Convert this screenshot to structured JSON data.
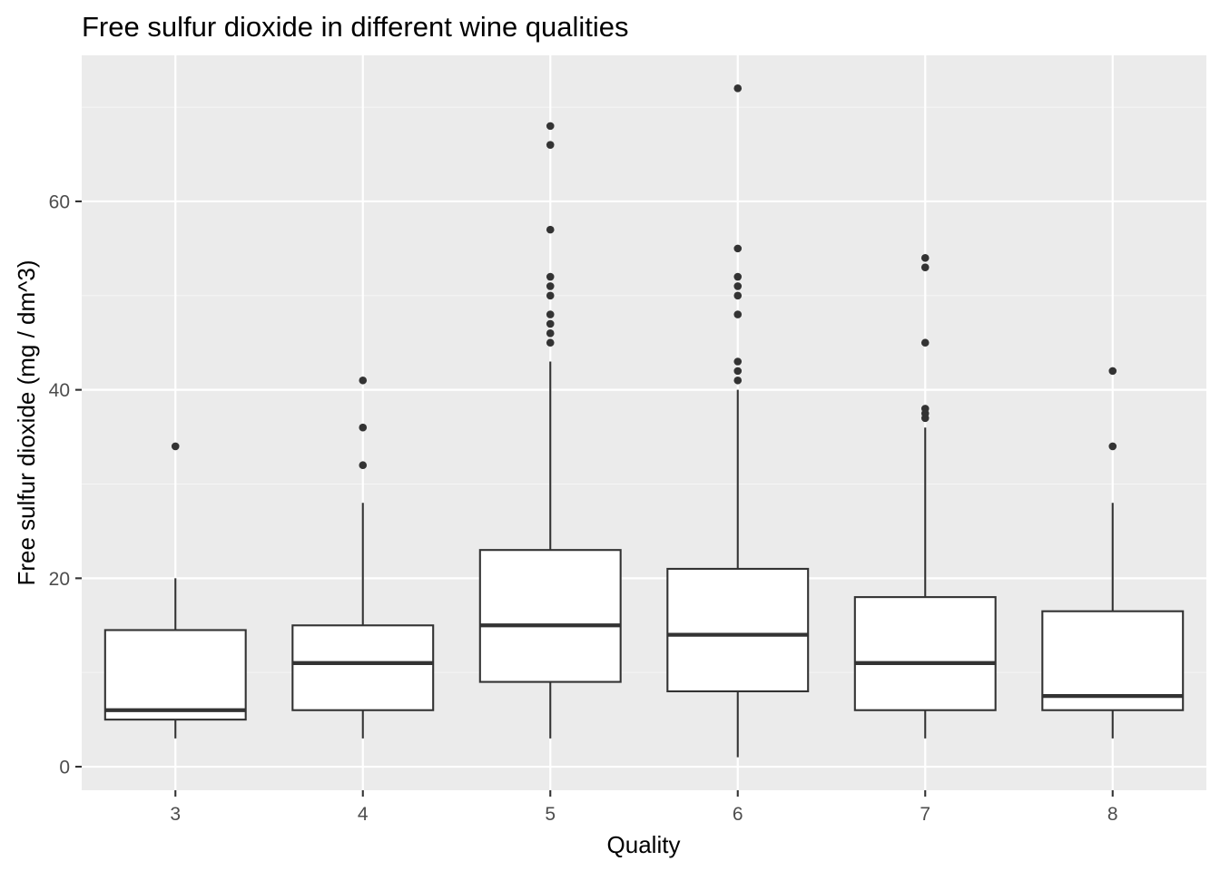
{
  "chart_data": {
    "type": "boxplot",
    "title": "Free sulfur dioxide in different wine qualities",
    "xlabel": "Quality",
    "ylabel": "Free sulfur dioxide (mg / dm^3)",
    "categories": [
      "3",
      "4",
      "5",
      "6",
      "7",
      "8"
    ],
    "ylim": [
      -2.5,
      75.5
    ],
    "y_ticks": [
      0,
      20,
      40,
      60
    ],
    "grid": true,
    "legend": "none",
    "boxes": [
      {
        "category": "3",
        "whisker_low": 3,
        "q1": 5,
        "median": 6,
        "q3": 14.5,
        "whisker_high": 20,
        "outliers": [
          34
        ]
      },
      {
        "category": "4",
        "whisker_low": 3,
        "q1": 6,
        "median": 11,
        "q3": 15,
        "whisker_high": 28,
        "outliers": [
          32,
          36,
          41
        ]
      },
      {
        "category": "5",
        "whisker_low": 3,
        "q1": 9,
        "median": 15,
        "q3": 23,
        "whisker_high": 43,
        "outliers": [
          45,
          46,
          47,
          48,
          50,
          51,
          52,
          57,
          66,
          68
        ]
      },
      {
        "category": "6",
        "whisker_low": 1,
        "q1": 8,
        "median": 14,
        "q3": 21,
        "whisker_high": 40,
        "outliers": [
          41,
          42,
          43,
          48,
          50,
          51,
          52,
          55,
          72
        ]
      },
      {
        "category": "7",
        "whisker_low": 3,
        "q1": 6,
        "median": 11,
        "q3": 18,
        "whisker_high": 36,
        "outliers": [
          37,
          37.5,
          38,
          45,
          53,
          54
        ]
      },
      {
        "category": "8",
        "whisker_low": 3,
        "q1": 6,
        "median": 7.5,
        "q3": 16.5,
        "whisker_high": 28,
        "outliers": [
          34,
          42
        ]
      }
    ],
    "colors": {
      "panel_background": "#EBEBEB",
      "grid_major": "#FFFFFF",
      "grid_minor": "#F5F5F5",
      "box_fill": "#FFFFFF",
      "box_line": "#333333",
      "outlier": "#333333",
      "tick_label": "#4D4D4D",
      "tick_mark": "#333333"
    }
  }
}
